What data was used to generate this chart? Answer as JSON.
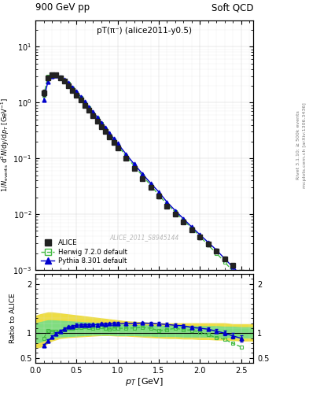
{
  "title_left": "900 GeV pp",
  "title_right": "Soft QCD",
  "plot_title": "pT(π⁻) (alice2011-y0.5)",
  "watermark": "ALICE_2011_S8945144",
  "right_label_top": "Rivet 3.1.10; ≥ 500k events",
  "right_label_bot": "mcplots.cern.ch [arXiv:1306.3436]",
  "xlabel": "p_T [GeV]",
  "ylabel_main": "1/N_{events} d²N/dy/dp_T [GeV⁻¹]",
  "ylabel_ratio": "Ratio to ALICE",
  "xlim": [
    0.0,
    2.65
  ],
  "ylim_main": [
    0.001,
    30
  ],
  "ylim_ratio": [
    0.4,
    2.2
  ],
  "alice_x": [
    0.1,
    0.15,
    0.2,
    0.25,
    0.3,
    0.35,
    0.4,
    0.45,
    0.5,
    0.55,
    0.6,
    0.65,
    0.7,
    0.75,
    0.8,
    0.85,
    0.9,
    0.95,
    1.0,
    1.1,
    1.2,
    1.3,
    1.4,
    1.5,
    1.6,
    1.7,
    1.8,
    1.9,
    2.0,
    2.1,
    2.2,
    2.3,
    2.4,
    2.5
  ],
  "alice_y": [
    1.5,
    2.8,
    3.2,
    3.1,
    2.8,
    2.4,
    2.0,
    1.65,
    1.35,
    1.1,
    0.88,
    0.72,
    0.58,
    0.47,
    0.37,
    0.3,
    0.24,
    0.19,
    0.155,
    0.1,
    0.066,
    0.044,
    0.03,
    0.021,
    0.014,
    0.01,
    0.0072,
    0.0053,
    0.0039,
    0.0029,
    0.0022,
    0.0016,
    0.0012,
    0.0009
  ],
  "alice_yerr": [
    0.2,
    0.2,
    0.2,
    0.2,
    0.15,
    0.12,
    0.1,
    0.08,
    0.07,
    0.06,
    0.05,
    0.04,
    0.03,
    0.025,
    0.02,
    0.016,
    0.013,
    0.011,
    0.009,
    0.006,
    0.004,
    0.003,
    0.002,
    0.0015,
    0.001,
    0.0007,
    0.0005,
    0.0004,
    0.0003,
    0.00022,
    0.00017,
    0.00013,
    0.0001,
    8e-05
  ],
  "herwig_x": [
    0.1,
    0.15,
    0.2,
    0.25,
    0.3,
    0.35,
    0.4,
    0.45,
    0.5,
    0.55,
    0.6,
    0.65,
    0.7,
    0.75,
    0.8,
    0.85,
    0.9,
    0.95,
    1.0,
    1.1,
    1.2,
    1.3,
    1.4,
    1.5,
    1.6,
    1.7,
    1.8,
    1.9,
    2.0,
    2.1,
    2.2,
    2.3,
    2.4,
    2.5
  ],
  "herwig_y": [
    1.35,
    2.95,
    3.3,
    3.2,
    2.9,
    2.55,
    2.2,
    1.82,
    1.5,
    1.22,
    0.99,
    0.8,
    0.64,
    0.52,
    0.42,
    0.33,
    0.26,
    0.21,
    0.17,
    0.11,
    0.073,
    0.049,
    0.033,
    0.022,
    0.015,
    0.011,
    0.0077,
    0.0056,
    0.004,
    0.0028,
    0.002,
    0.0014,
    0.00095,
    0.00065
  ],
  "herwig_ratio": [
    0.9,
    1.05,
    1.03,
    1.03,
    1.035,
    1.06,
    1.1,
    1.1,
    1.11,
    1.11,
    1.125,
    1.11,
    1.1,
    1.11,
    1.135,
    1.1,
    1.083,
    1.105,
    1.097,
    1.1,
    1.106,
    1.114,
    1.1,
    1.048,
    1.071,
    1.1,
    1.07,
    1.057,
    1.026,
    0.966,
    0.909,
    0.875,
    0.792,
    0.722
  ],
  "pythia_x": [
    0.1,
    0.15,
    0.2,
    0.25,
    0.3,
    0.35,
    0.4,
    0.45,
    0.5,
    0.55,
    0.6,
    0.65,
    0.7,
    0.75,
    0.8,
    0.85,
    0.9,
    0.95,
    1.0,
    1.1,
    1.2,
    1.3,
    1.4,
    1.5,
    1.6,
    1.7,
    1.8,
    1.9,
    2.0,
    2.1,
    2.2,
    2.3,
    2.4,
    2.5
  ],
  "pythia_ratio": [
    0.75,
    0.84,
    0.92,
    0.984,
    1.036,
    1.083,
    1.125,
    1.139,
    1.163,
    1.164,
    1.17,
    1.167,
    1.172,
    1.17,
    1.189,
    1.183,
    1.188,
    1.2,
    1.194,
    1.2,
    1.197,
    1.205,
    1.2,
    1.19,
    1.175,
    1.16,
    1.15,
    1.115,
    1.1,
    1.08,
    1.04,
    1.0,
    0.945,
    0.895
  ],
  "pythia_yerr": [
    0.03,
    0.03,
    0.03,
    0.03,
    0.03,
    0.03,
    0.03,
    0.03,
    0.03,
    0.03,
    0.03,
    0.03,
    0.03,
    0.03,
    0.03,
    0.03,
    0.03,
    0.03,
    0.03,
    0.03,
    0.03,
    0.03,
    0.03,
    0.03,
    0.03,
    0.03,
    0.03,
    0.03,
    0.03,
    0.03,
    0.04,
    0.05,
    0.055,
    0.065
  ],
  "band_x": [
    0.0,
    0.05,
    0.1,
    0.15,
    0.2,
    0.3,
    0.4,
    0.5,
    0.6,
    0.7,
    0.8,
    0.9,
    1.0,
    1.1,
    1.2,
    1.3,
    1.4,
    1.5,
    1.6,
    1.7,
    1.8,
    1.9,
    2.0,
    2.1,
    2.2,
    2.3,
    2.4,
    2.5,
    2.65
  ],
  "band_outer_lo": [
    0.7,
    0.72,
    0.75,
    0.8,
    0.85,
    0.9,
    0.92,
    0.93,
    0.94,
    0.95,
    0.96,
    0.96,
    0.95,
    0.95,
    0.94,
    0.93,
    0.92,
    0.91,
    0.9,
    0.9,
    0.89,
    0.89,
    0.88,
    0.88,
    0.87,
    0.87,
    0.86,
    0.85,
    0.85
  ],
  "band_outer_hi": [
    1.35,
    1.38,
    1.4,
    1.42,
    1.42,
    1.4,
    1.38,
    1.36,
    1.34,
    1.32,
    1.3,
    1.28,
    1.26,
    1.24,
    1.23,
    1.22,
    1.21,
    1.2,
    1.2,
    1.2,
    1.2,
    1.2,
    1.2,
    1.2,
    1.2,
    1.2,
    1.18,
    1.18,
    1.18
  ],
  "band_inner_lo": [
    0.8,
    0.82,
    0.85,
    0.88,
    0.9,
    0.93,
    0.94,
    0.95,
    0.96,
    0.97,
    0.97,
    0.97,
    0.96,
    0.96,
    0.96,
    0.95,
    0.95,
    0.94,
    0.94,
    0.94,
    0.93,
    0.93,
    0.93,
    0.93,
    0.92,
    0.92,
    0.92,
    0.91,
    0.91
  ],
  "band_inner_hi": [
    1.2,
    1.22,
    1.24,
    1.26,
    1.26,
    1.25,
    1.24,
    1.23,
    1.22,
    1.21,
    1.2,
    1.19,
    1.18,
    1.17,
    1.16,
    1.16,
    1.15,
    1.15,
    1.15,
    1.15,
    1.15,
    1.14,
    1.14,
    1.14,
    1.14,
    1.13,
    1.13,
    1.12,
    1.12
  ],
  "alice_color": "#222222",
  "herwig_color": "#44bb44",
  "pythia_color": "#0000cc",
  "band_inner_color": "#80dd80",
  "band_outer_color": "#eedd44",
  "background_color": "#ffffff"
}
